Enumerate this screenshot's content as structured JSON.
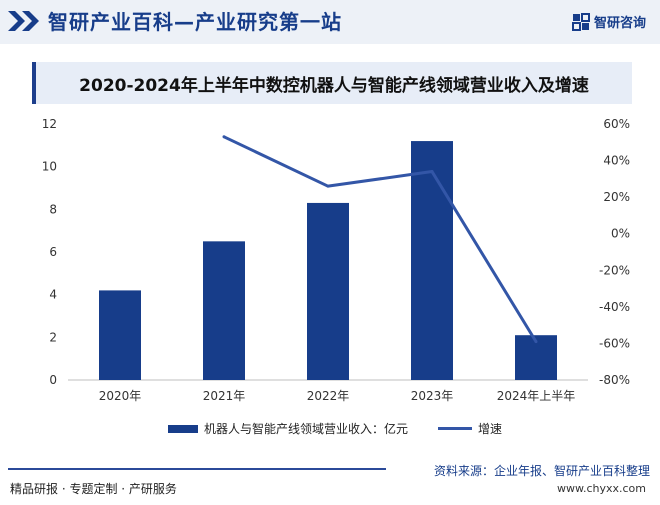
{
  "header": {
    "title": "智研产业百科—产业研究第一站",
    "brand_name": "智研咨询"
  },
  "chart_data": {
    "type": "bar",
    "title": "2020-2024年上半年中数控机器人与智能产线领域营业收入及增速",
    "categories": [
      "2020年",
      "2021年",
      "2022年",
      "2023年",
      "2024年上半年"
    ],
    "series": [
      {
        "name": "机器人与智能产线领域营业收入：亿元",
        "type": "bar",
        "axis": "left",
        "values": [
          4.2,
          6.5,
          8.3,
          11.2,
          2.1
        ],
        "color": "#173d8a"
      },
      {
        "name": "增速",
        "type": "line",
        "axis": "right",
        "values": [
          null,
          53,
          26,
          34,
          -59
        ],
        "color": "#3356a7"
      }
    ],
    "y_left": {
      "min": 0,
      "max": 12,
      "ticks": [
        "0",
        "2",
        "4",
        "6",
        "8",
        "10",
        "12"
      ]
    },
    "y_right": {
      "min": -80,
      "max": 60,
      "ticks": [
        "-80%",
        "-60%",
        "-40%",
        "-20%",
        "0%",
        "20%",
        "40%",
        "60%"
      ]
    },
    "grid": false,
    "legend_position": "bottom"
  },
  "source": "资料来源：企业年报、智研产业百科整理",
  "footer": {
    "left": "精品研报 · 专题定制 · 产研服务",
    "site": "www.chyxx.com"
  }
}
